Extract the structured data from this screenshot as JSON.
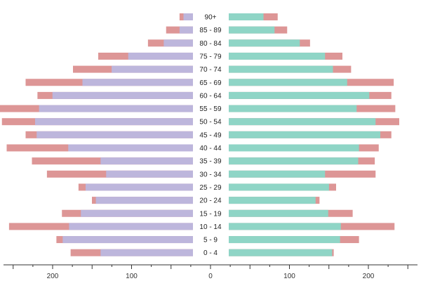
{
  "chart_data": {
    "type": "bar",
    "orientation": "horizontal-population-pyramid",
    "title": "",
    "xlabel": "",
    "ylabel": "",
    "xlim": [
      -265,
      265
    ],
    "grid": false,
    "legend": "none",
    "categories": [
      "90+",
      "85 - 89",
      "80 - 84",
      "75 - 79",
      "70 - 74",
      "65 - 69",
      "60 - 64",
      "55 - 59",
      "50 - 54",
      "45 - 49",
      "40 - 44",
      "35 - 39",
      "30 - 34",
      "25 - 29",
      "20 - 24",
      "15 - 19",
      "10 - 14",
      "5 - 9",
      "0 - 4"
    ],
    "x_tick_labels": [
      {
        "value": -200,
        "label": "200"
      },
      {
        "value": -100,
        "label": "100"
      },
      {
        "value": 0,
        "label": "0"
      },
      {
        "value": 100,
        "label": "100"
      },
      {
        "value": 200,
        "label": "200"
      }
    ],
    "colors": {
      "left_base": "#bdb6dc",
      "left_surplus": "#dd9696",
      "left_deficit": "#ebe9f4",
      "right_base": "#8fd5c6",
      "right_surplus": "#dd9696",
      "right_deficit": "#dcf2ed",
      "axis": "#333333"
    },
    "series": [
      {
        "side": "left",
        "current": [
          12,
          17,
          37,
          82,
          103,
          140,
          178,
          195,
          200,
          198,
          158,
          117,
          110,
          136,
          123,
          142,
          157,
          165,
          117
        ],
        "comparison": [
          17,
          34,
          57,
          120,
          152,
          212,
          197,
          250,
          242,
          212,
          236,
          204,
          185,
          145,
          128,
          166,
          233,
          173,
          155
        ]
      },
      {
        "side": "right",
        "current": [
          44,
          58,
          90,
          122,
          132,
          150,
          178,
          162,
          186,
          192,
          165,
          164,
          122,
          127,
          110,
          126,
          142,
          141,
          131
        ],
        "comparison": [
          62,
          74,
          103,
          144,
          155,
          209,
          206,
          211,
          216,
          206,
          190,
          185,
          186,
          136,
          115,
          157,
          210,
          165,
          133
        ]
      }
    ]
  }
}
